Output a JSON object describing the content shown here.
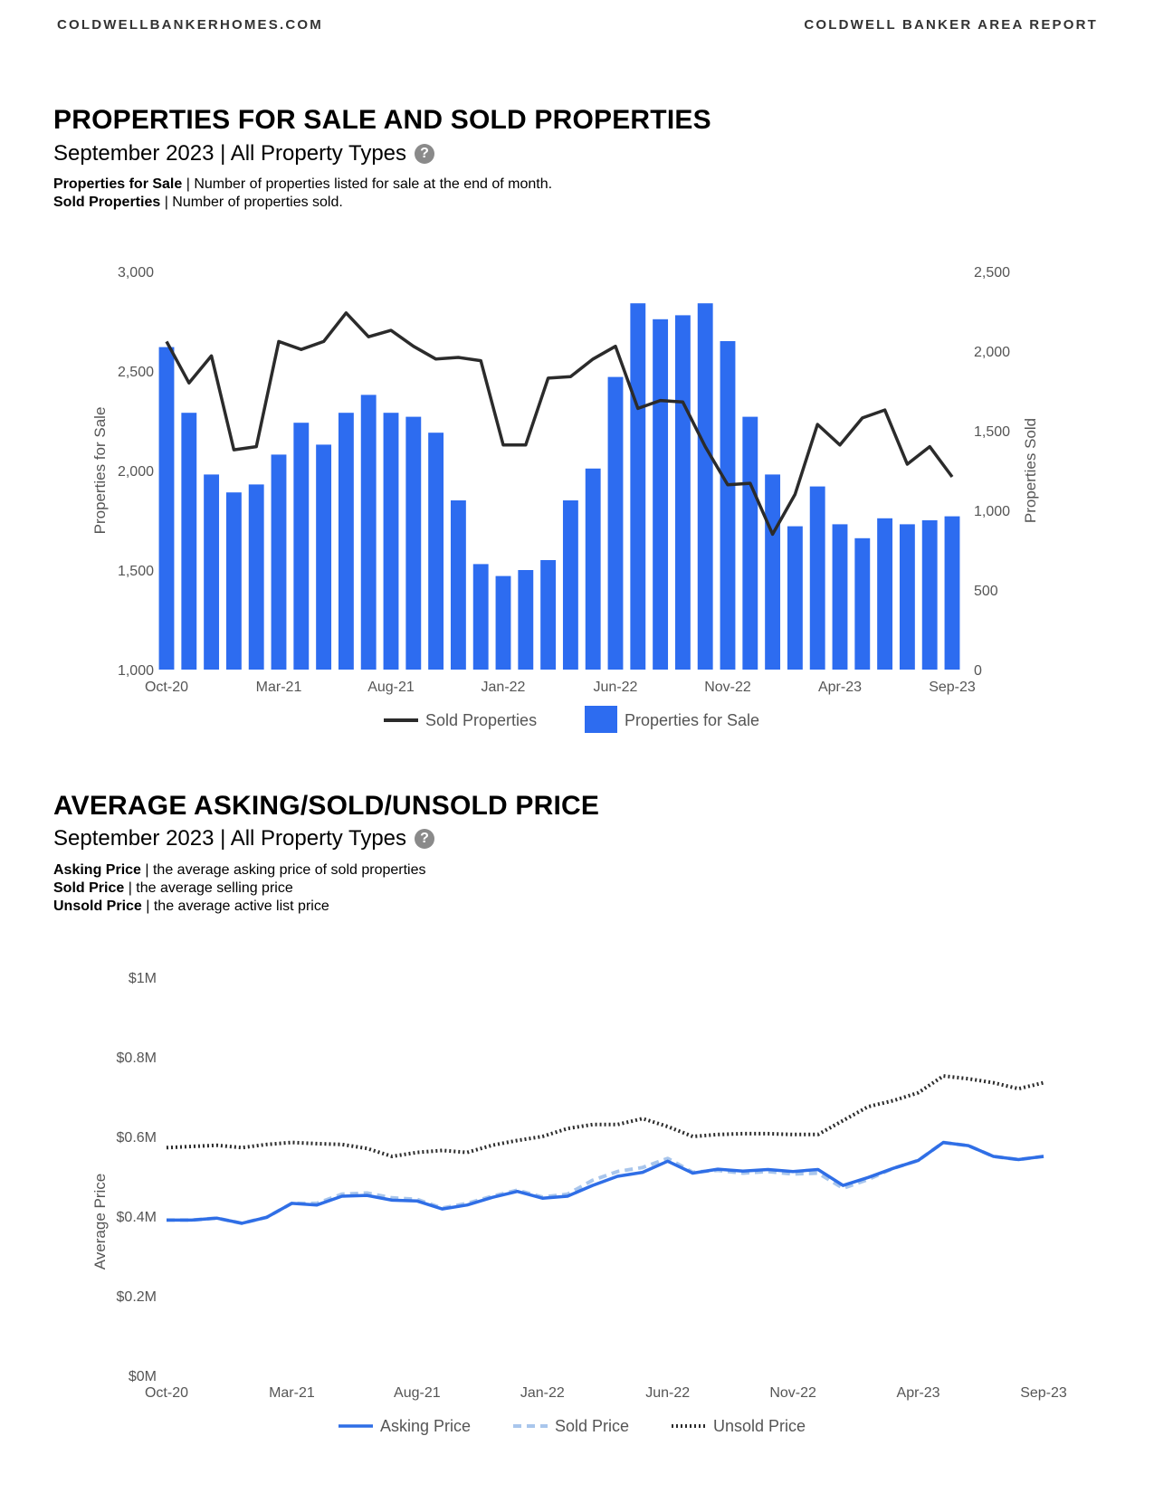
{
  "header": {
    "site": "COLDWELLBANKERHOMES.COM",
    "report": "COLDWELL BANKER AREA REPORT"
  },
  "section1": {
    "title": "PROPERTIES FOR SALE AND SOLD PROPERTIES",
    "subtitle": "September 2023 | All Property Types",
    "defs": [
      {
        "term": "Properties for Sale",
        "text": " | Number of properties listed for sale at the end of month."
      },
      {
        "term": "Sold Properties",
        "text": " | Number of properties sold."
      }
    ]
  },
  "section2": {
    "title": "AVERAGE ASKING/SOLD/UNSOLD PRICE",
    "subtitle": "September 2023 | All Property Types",
    "defs": [
      {
        "term": "Asking Price",
        "text": " | the average asking price of sold properties"
      },
      {
        "term": "Sold Price",
        "text": " | the average selling price"
      },
      {
        "term": "Unsold Price",
        "text": " | the average active list price"
      }
    ]
  },
  "colors": {
    "bar": "#2d6cf0",
    "sold_line": "#2b2b2b",
    "asking": "#2f6ee6",
    "sold_price": "#a9c6ec",
    "unsold": "#2b2b2b"
  },
  "chart_data": [
    {
      "type": "bar",
      "ylabel": "Properties for Sale",
      "y2label": "Properties Sold",
      "ylim": [
        1000,
        3000
      ],
      "y2lim": [
        0,
        2500
      ],
      "yticks": [
        "3,000",
        "2,500",
        "2,000",
        "1,500",
        "1,000"
      ],
      "y2ticks": [
        "2,500",
        "2,000",
        "1,500",
        "1,000",
        "500",
        "0"
      ],
      "xticks": [
        "Oct-20",
        "Mar-21",
        "Aug-21",
        "Jan-22",
        "Jun-22",
        "Nov-22",
        "Apr-23",
        "Sep-23"
      ],
      "legend_position": "bottom",
      "categories": [
        "Oct-20",
        "Nov-20",
        "Dec-20",
        "Jan-21",
        "Feb-21",
        "Mar-21",
        "Apr-21",
        "May-21",
        "Jun-21",
        "Jul-21",
        "Aug-21",
        "Sep-21",
        "Oct-21",
        "Nov-21",
        "Dec-21",
        "Jan-22",
        "Feb-22",
        "Mar-22",
        "Apr-22",
        "May-22",
        "Jun-22",
        "Jul-22",
        "Aug-22",
        "Sep-22",
        "Oct-22",
        "Nov-22",
        "Dec-22",
        "Jan-23",
        "Feb-23",
        "Mar-23",
        "Apr-23",
        "May-23",
        "Jun-23",
        "Jul-23",
        "Aug-23",
        "Sep-23"
      ],
      "series": [
        {
          "name": "Sold Properties",
          "axis": "right",
          "kind": "line",
          "values": [
            2060,
            1800,
            1970,
            1380,
            1400,
            2060,
            2010,
            2060,
            2240,
            2090,
            2130,
            2030,
            1950,
            1960,
            1940,
            1410,
            1410,
            1830,
            1840,
            1950,
            2030,
            1640,
            1690,
            1680,
            1400,
            1160,
            1170,
            850,
            1100,
            1540,
            1410,
            1580,
            1630,
            1290,
            1400,
            1210
          ]
        },
        {
          "name": "Properties for Sale",
          "axis": "left",
          "kind": "bar",
          "values": [
            2620,
            2290,
            1980,
            1890,
            1930,
            2080,
            2240,
            2130,
            2290,
            2380,
            2290,
            2270,
            2190,
            1850,
            1530,
            1470,
            1500,
            1550,
            1850,
            2010,
            2470,
            2840,
            2760,
            2780,
            2840,
            2650,
            2270,
            1980,
            1720,
            1920,
            1730,
            1660,
            1760,
            1730,
            1750,
            1770
          ]
        }
      ]
    },
    {
      "type": "line",
      "ylabel": "Average Price",
      "ylim": [
        0,
        1000000
      ],
      "yticks": [
        "$1M",
        "$0.8M",
        "$0.6M",
        "$0.4M",
        "$0.2M",
        "$0M"
      ],
      "xticks": [
        "Oct-20",
        "Mar-21",
        "Aug-21",
        "Jan-22",
        "Jun-22",
        "Nov-22",
        "Apr-23",
        "Sep-23"
      ],
      "legend_position": "bottom",
      "categories": [
        "Oct-20",
        "Nov-20",
        "Dec-20",
        "Jan-21",
        "Feb-21",
        "Mar-21",
        "Apr-21",
        "May-21",
        "Jun-21",
        "Jul-21",
        "Aug-21",
        "Sep-21",
        "Oct-21",
        "Nov-21",
        "Dec-21",
        "Jan-22",
        "Feb-22",
        "Mar-22",
        "Apr-22",
        "May-22",
        "Jun-22",
        "Jul-22",
        "Aug-22",
        "Sep-22",
        "Oct-22",
        "Nov-22",
        "Dec-22",
        "Jan-23",
        "Feb-23",
        "Mar-23",
        "Apr-23",
        "May-23",
        "Jun-23",
        "Jul-23",
        "Aug-23",
        "Sep-23"
      ],
      "series": [
        {
          "name": "Asking Price",
          "style": "solid",
          "values": [
            390000,
            390000,
            395000,
            382000,
            397000,
            432000,
            428000,
            450000,
            452000,
            440000,
            438000,
            418000,
            428000,
            447000,
            462000,
            445000,
            450000,
            477000,
            500000,
            510000,
            538000,
            508000,
            518000,
            513000,
            517000,
            512000,
            517000,
            477000,
            497000,
            520000,
            540000,
            585000,
            577000,
            550000,
            542000,
            550000
          ]
        },
        {
          "name": "Sold Price",
          "style": "dashed",
          "values": [
            390000,
            390000,
            395000,
            382000,
            397000,
            432000,
            432000,
            455000,
            458000,
            446000,
            442000,
            420000,
            432000,
            450000,
            465000,
            448000,
            455000,
            490000,
            512000,
            522000,
            545000,
            510000,
            515000,
            508000,
            512000,
            506000,
            508000,
            470000,
            492000,
            520000,
            540000,
            585000,
            577000,
            550000,
            542000,
            550000
          ]
        },
        {
          "name": "Unsold Price",
          "style": "dotted",
          "values": [
            572000,
            575000,
            578000,
            572000,
            580000,
            585000,
            582000,
            580000,
            570000,
            550000,
            560000,
            565000,
            560000,
            578000,
            590000,
            600000,
            620000,
            630000,
            630000,
            645000,
            625000,
            600000,
            605000,
            607000,
            607000,
            605000,
            605000,
            640000,
            675000,
            690000,
            710000,
            752000,
            745000,
            735000,
            720000,
            735000
          ]
        }
      ]
    }
  ]
}
